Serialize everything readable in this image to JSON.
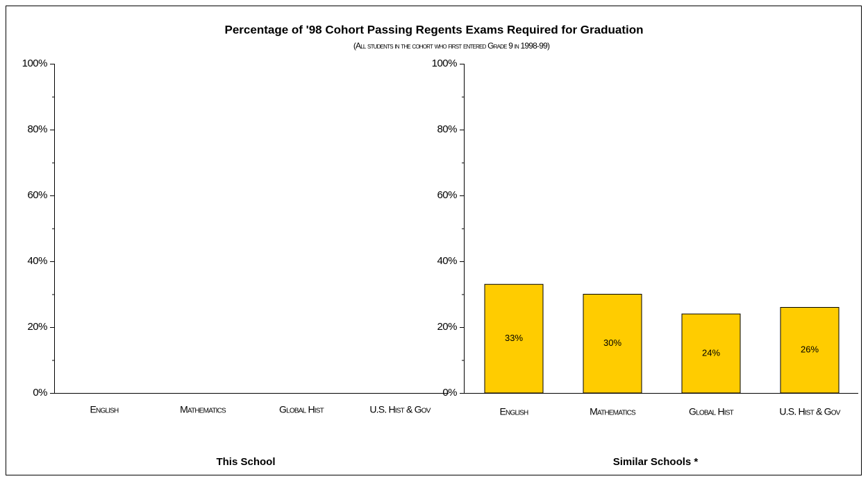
{
  "title": "Percentage of '98 Cohort Passing Regents Exams Required for Graduation",
  "subtitle": "(All students in the cohort who first entered Grade 9 in 1998-99)",
  "chart_data": [
    {
      "type": "bar",
      "xlabel": "This School",
      "categories": [
        "English",
        "Mathematics",
        "Global Hist",
        "U.S. Hist & Gov"
      ],
      "values": [
        null,
        null,
        null,
        null
      ],
      "color": "#ffcc00",
      "ylim": [
        0,
        100
      ],
      "yticks": [
        {
          "value": 0,
          "label": "0%"
        },
        {
          "value": 20,
          "label": "20%"
        },
        {
          "value": 40,
          "label": "40%"
        },
        {
          "value": 60,
          "label": "60%"
        },
        {
          "value": 80,
          "label": "80%"
        },
        {
          "value": 100,
          "label": "100%"
        }
      ],
      "minor_yticks": [
        10,
        30,
        50,
        70,
        90
      ]
    },
    {
      "type": "bar",
      "xlabel": "Similar Schools *",
      "categories": [
        "English",
        "Mathematics",
        "Global Hist",
        "U.S. Hist & Gov"
      ],
      "values": [
        33,
        30,
        24,
        26
      ],
      "value_labels": [
        "33%",
        "30%",
        "24%",
        "26%"
      ],
      "color": "#ffcc00",
      "ylim": [
        0,
        100
      ],
      "yticks": [
        {
          "value": 0,
          "label": "0%"
        },
        {
          "value": 20,
          "label": "20%"
        },
        {
          "value": 40,
          "label": "40%"
        },
        {
          "value": 60,
          "label": "60%"
        },
        {
          "value": 80,
          "label": "80%"
        },
        {
          "value": 100,
          "label": "100%"
        }
      ],
      "minor_yticks": [
        10,
        30,
        50,
        70,
        90
      ]
    }
  ]
}
